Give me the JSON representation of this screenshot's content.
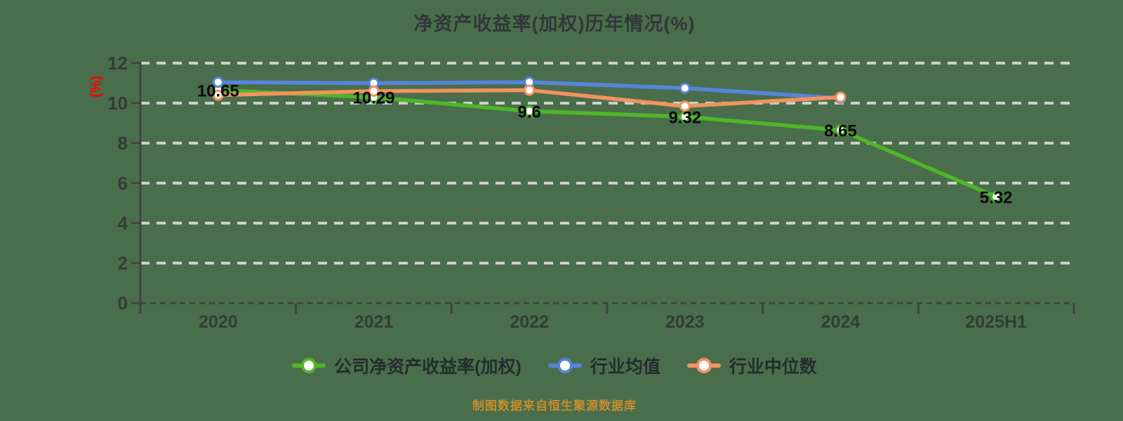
{
  "chart": {
    "title": "净资产收益率(加权)历年情况(%)",
    "ylabel": "(%)",
    "footer": "制图数据来自恒生聚源数据库"
  },
  "chart_data": {
    "type": "line",
    "title": "净资产收益率(加权)历年情况(%)",
    "xlabel": "",
    "ylabel": "(%)",
    "categories": [
      "2020",
      "2021",
      "2022",
      "2023",
      "2024",
      "2025H1"
    ],
    "series": [
      {
        "name": "公司净资产收益率(加权)",
        "color": "#4fb628",
        "values": [
          10.65,
          10.29,
          9.6,
          9.32,
          8.65,
          5.32
        ],
        "labels": [
          "10.65",
          "10.29",
          "9.6",
          "9.32",
          "8.65",
          "5.32"
        ],
        "show_labels": true
      },
      {
        "name": "行业均值",
        "color": "#5584dd",
        "values": [
          11.05,
          11.0,
          11.05,
          10.75,
          10.25,
          null
        ],
        "labels": [],
        "show_labels": false
      },
      {
        "name": "行业中位数",
        "color": "#f3925f",
        "values": [
          10.4,
          10.6,
          10.65,
          9.85,
          10.3,
          null
        ],
        "labels": [],
        "show_labels": false
      }
    ],
    "ylim": [
      0,
      12
    ],
    "yticks": [
      0,
      2,
      4,
      6,
      8,
      10,
      12
    ],
    "grid": "horizontal-dashed",
    "legend_position": "bottom",
    "marker": "circle-white-fill",
    "style": {
      "background": "#4a6e4b",
      "grid_color": "#cfcfcf",
      "axis_color": "#3d4441",
      "title_color": "#30373a",
      "tick_label_color": "#343b38",
      "data_label_color": "#0a0a0a",
      "ylabel_color": "#ff0000",
      "legend_text_color": "#262c2e",
      "footer_color": "#c78d2e"
    }
  }
}
